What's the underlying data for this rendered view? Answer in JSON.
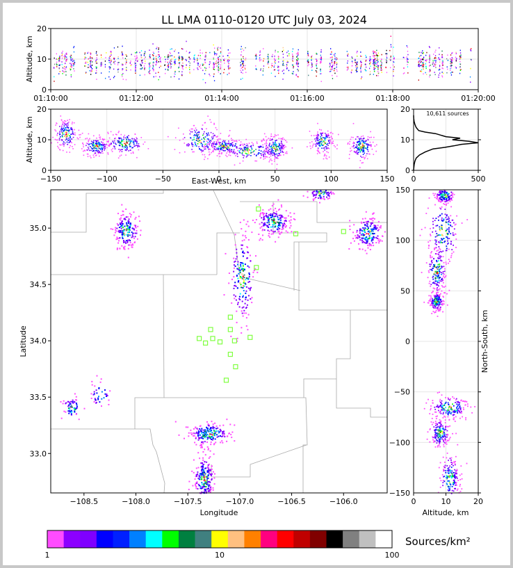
{
  "title": "LL LMA 0110-0120 UTC July 03, 2024",
  "colors": {
    "frame": "#c8c8c8",
    "background": "#ffffff",
    "counties": "#a0a0a0",
    "stations": "#7fff3f"
  },
  "chart_data": [
    {
      "id": "time-height",
      "type": "scatter",
      "ylabel": "Altitude, km",
      "ylim": [
        0,
        20
      ],
      "yticks": [
        "0",
        "10",
        "20"
      ],
      "xlim": [
        "01:10:00",
        "01:20:00"
      ],
      "xticks": [
        "01:10:00",
        "01:12:00",
        "01:14:00",
        "01:16:00",
        "01:18:00",
        "01:20:00"
      ],
      "grid": true
    },
    {
      "id": "ew-altitude",
      "type": "scatter",
      "xlabel": "East-West, km",
      "ylabel": "Altitude, km",
      "xlim": [
        -150,
        150
      ],
      "ylim": [
        0,
        20
      ],
      "xticks": [
        "−150",
        "−100",
        "−50",
        "0",
        "50",
        "100",
        "150"
      ],
      "yticks": [
        "0",
        "10",
        "20"
      ],
      "clusters": [
        {
          "x": -137,
          "z": 12,
          "sx": 5,
          "sz": 2.5
        },
        {
          "x": -110,
          "z": 8,
          "sx": 6,
          "sz": 1.5
        },
        {
          "x": -84,
          "z": 9,
          "sx": 9,
          "sz": 1.8
        },
        {
          "x": -17,
          "z": 10,
          "sx": 9,
          "sz": 2.5
        },
        {
          "x": 5,
          "z": 8,
          "sx": 9,
          "sz": 1.2
        },
        {
          "x": 28,
          "z": 6.5,
          "sx": 12,
          "sz": 1.5
        },
        {
          "x": 50,
          "z": 7.5,
          "sx": 5,
          "sz": 2
        },
        {
          "x": 92,
          "z": 9.5,
          "sx": 5,
          "sz": 2
        },
        {
          "x": 127,
          "z": 8,
          "sx": 5,
          "sz": 2.2
        }
      ]
    },
    {
      "id": "altitude-histogram",
      "type": "line",
      "annotation": "10,611 sources",
      "xlim": [
        0,
        500
      ],
      "ylim": [
        0,
        20
      ],
      "xticks": [
        "0",
        "500"
      ],
      "yticks": [
        "0",
        "10",
        "20"
      ],
      "profile": [
        [
          0,
          0
        ],
        [
          2,
          1
        ],
        [
          5,
          2
        ],
        [
          10,
          3
        ],
        [
          20,
          4
        ],
        [
          45,
          5
        ],
        [
          90,
          6
        ],
        [
          150,
          7
        ],
        [
          240,
          7.5
        ],
        [
          310,
          8
        ],
        [
          370,
          8.5
        ],
        [
          500,
          9
        ],
        [
          430,
          9.5
        ],
        [
          300,
          10
        ],
        [
          360,
          10.5
        ],
        [
          250,
          11
        ],
        [
          170,
          12
        ],
        [
          90,
          12.5
        ],
        [
          40,
          13
        ],
        [
          20,
          14
        ],
        [
          10,
          15
        ],
        [
          4,
          16
        ],
        [
          1,
          17
        ],
        [
          0,
          18
        ]
      ]
    },
    {
      "id": "plan-view",
      "type": "scatter",
      "xlabel": "Longitude",
      "ylabel": "Latitude",
      "xlim": [
        -108.82,
        -105.58
      ],
      "ylim": [
        32.65,
        35.34
      ],
      "xticks": [
        "−108.5",
        "−108.0",
        "−107.5",
        "−107.0",
        "−106.5",
        "−106.0"
      ],
      "yticks": [
        "33.0",
        "33.5",
        "34.0",
        "34.5",
        "35.0"
      ],
      "stations": [
        [
          -106.82,
          35.17
        ],
        [
          -106.46,
          34.95
        ],
        [
          -106.0,
          34.97
        ],
        [
          -106.84,
          34.65
        ],
        [
          -107.09,
          34.21
        ],
        [
          -107.28,
          34.1
        ],
        [
          -107.09,
          34.1
        ],
        [
          -107.39,
          34.02
        ],
        [
          -107.26,
          34.02
        ],
        [
          -107.33,
          33.98
        ],
        [
          -107.19,
          33.99
        ],
        [
          -107.05,
          34.0
        ],
        [
          -106.9,
          34.03
        ],
        [
          -107.09,
          33.88
        ],
        [
          -107.04,
          33.77
        ],
        [
          -107.13,
          33.65
        ]
      ],
      "clusters": [
        {
          "lon": -108.1,
          "lat": 34.98,
          "slon": 0.06,
          "slat": 0.08,
          "n": 180
        },
        {
          "lon": -106.68,
          "lat": 35.06,
          "slon": 0.08,
          "slat": 0.06,
          "n": 200
        },
        {
          "lon": -106.22,
          "lat": 35.31,
          "slon": 0.06,
          "slat": 0.03,
          "n": 80
        },
        {
          "lon": -105.77,
          "lat": 34.96,
          "slon": 0.07,
          "slat": 0.07,
          "n": 180
        },
        {
          "lon": -106.98,
          "lat": 34.56,
          "slon": 0.06,
          "slat": 0.2,
          "n": 180
        },
        {
          "lon": -108.62,
          "lat": 33.41,
          "slon": 0.05,
          "slat": 0.05,
          "n": 60
        },
        {
          "lon": -108.35,
          "lat": 33.53,
          "slon": 0.05,
          "slat": 0.06,
          "n": 40
        },
        {
          "lon": -107.3,
          "lat": 33.18,
          "slon": 0.1,
          "slat": 0.05,
          "n": 200
        },
        {
          "lon": -107.35,
          "lat": 32.78,
          "slon": 0.05,
          "slat": 0.1,
          "n": 220
        }
      ]
    },
    {
      "id": "altitude-ns",
      "type": "scatter",
      "xlabel": "Altitude, km",
      "ylabel": "North-South, km",
      "xlim": [
        0,
        20
      ],
      "ylim": [
        -150,
        150
      ],
      "xticks": [
        "0",
        "10",
        "20"
      ],
      "yticks": [
        "−150",
        "−100",
        "−50",
        "0",
        "50",
        "100",
        "150"
      ],
      "clusters": [
        {
          "z": 9,
          "y": 110,
          "sz": 2.5,
          "sy": 15
        },
        {
          "z": 7,
          "y": 70,
          "sz": 1.5,
          "sy": 12
        },
        {
          "z": 7,
          "y": 40,
          "sz": 1.2,
          "sy": 5
        },
        {
          "z": 9.5,
          "y": 145,
          "sz": 1.5,
          "sy": 4
        },
        {
          "z": 11,
          "y": -65,
          "sz": 3,
          "sy": 6
        },
        {
          "z": 8,
          "y": -90,
          "sz": 1.5,
          "sy": 7
        },
        {
          "z": 11,
          "y": -135,
          "sz": 1.5,
          "sy": 12
        }
      ]
    },
    {
      "id": "colorbar",
      "type": "heatmap",
      "label": "Sources/km²",
      "scale": "log",
      "range": [
        1,
        100
      ],
      "ticks": [
        "1",
        "10",
        "100"
      ],
      "colors": [
        "#ff4cff",
        "#8c00ff",
        "#7f00ff",
        "#0000ff",
        "#0020ff",
        "#0080ff",
        "#00ffff",
        "#00ff00",
        "#008040",
        "#408080",
        "#ffff00",
        "#ffc080",
        "#ff8000",
        "#ff0080",
        "#ff0000",
        "#c00000",
        "#800000",
        "#000000",
        "#808080",
        "#c0c0c0",
        "#ffffff"
      ]
    }
  ]
}
